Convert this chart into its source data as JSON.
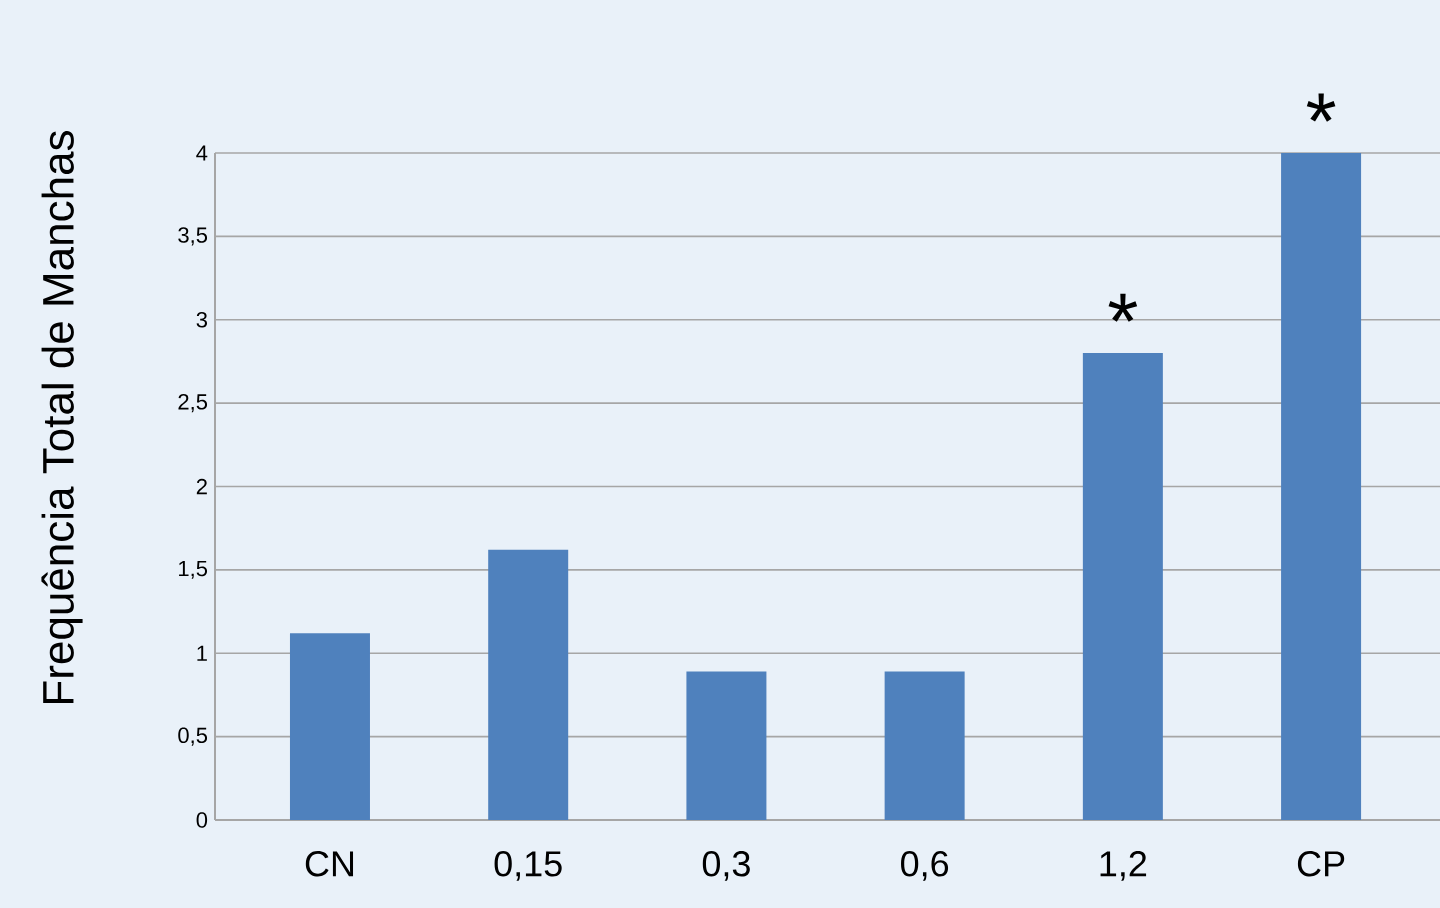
{
  "chart_data": {
    "type": "bar",
    "ylabel": "Frequência Total de Manchas",
    "categories": [
      "CN",
      "0,15",
      "0,3",
      "0,6",
      "1,2",
      "CP"
    ],
    "values": [
      1.12,
      1.62,
      0.89,
      0.89,
      2.8,
      4.0
    ],
    "color": "#4f81bd",
    "ylim": [
      0,
      4
    ],
    "yticks": [
      0,
      {
        "value": 0.5,
        "label": "0,5"
      },
      1,
      {
        "value": 1.5,
        "label": "1,5"
      },
      2,
      {
        "value": 2.5,
        "label": "2,5"
      },
      3,
      {
        "value": 3.5,
        "label": "3,5"
      },
      4
    ],
    "grid": "y",
    "annotations": [
      {
        "text": "*",
        "x": "1,2",
        "y": 2.8
      },
      {
        "text": "*",
        "x": "CP",
        "y": 4.0
      }
    ]
  }
}
